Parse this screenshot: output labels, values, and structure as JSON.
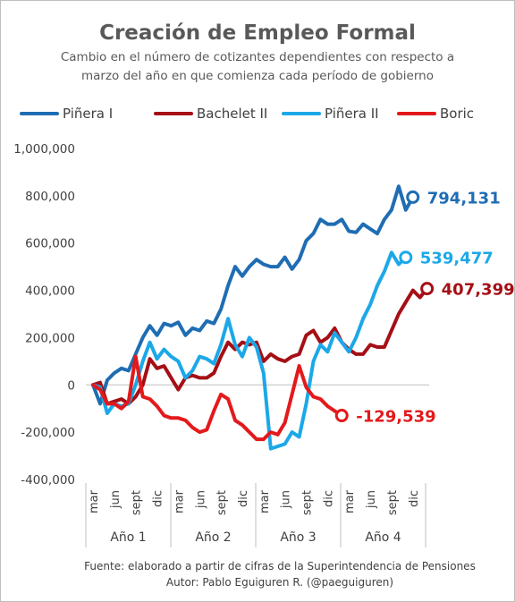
{
  "chart_data": {
    "type": "line",
    "title": "Creación de Empleo Formal",
    "subtitle": [
      "Cambio en el número de cotizantes dependientes con respecto a",
      "marzo del año en que comienza cada período de gobierno"
    ],
    "ylim": [
      -400000,
      1000000
    ],
    "yticks": [
      {
        "value": 1000000,
        "label": "1,000,000"
      },
      {
        "value": 800000,
        "label": "800,000"
      },
      {
        "value": 600000,
        "label": "600,000"
      },
      {
        "value": 400000,
        "label": "400,000"
      },
      {
        "value": 200000,
        "label": "200,000"
      },
      {
        "value": 0,
        "label": "0"
      },
      {
        "value": -200000,
        "label": "-200,000"
      },
      {
        "value": -400000,
        "label": "-400,000"
      }
    ],
    "grid": false,
    "legend": "top",
    "x_months": 48,
    "xticks": [
      {
        "index": 0,
        "label": "mar"
      },
      {
        "index": 3,
        "label": "jun"
      },
      {
        "index": 6,
        "label": "sept"
      },
      {
        "index": 9,
        "label": "dic"
      },
      {
        "index": 12,
        "label": "mar"
      },
      {
        "index": 15,
        "label": "jun"
      },
      {
        "index": 18,
        "label": "sept"
      },
      {
        "index": 21,
        "label": "dic"
      },
      {
        "index": 24,
        "label": "mar"
      },
      {
        "index": 27,
        "label": "jun"
      },
      {
        "index": 30,
        "label": "sept"
      },
      {
        "index": 33,
        "label": "dic"
      },
      {
        "index": 36,
        "label": "mar"
      },
      {
        "index": 39,
        "label": "jun"
      },
      {
        "index": 42,
        "label": "sept"
      },
      {
        "index": 45,
        "label": "dic"
      }
    ],
    "groups": [
      "Año 1",
      "Año 2",
      "Año 3",
      "Año 4"
    ],
    "series": [
      {
        "name": "Piñera I",
        "color": "#1f6db3",
        "end_label": "794,131",
        "values": [
          0,
          -80000,
          20000,
          50000,
          70000,
          60000,
          130000,
          200000,
          250000,
          210000,
          260000,
          250000,
          265000,
          210000,
          240000,
          230000,
          270000,
          260000,
          320000,
          420000,
          500000,
          460000,
          500000,
          530000,
          510000,
          500000,
          500000,
          540000,
          490000,
          530000,
          610000,
          640000,
          700000,
          680000,
          680000,
          700000,
          650000,
          645000,
          680000,
          660000,
          640000,
          700000,
          740000,
          840000,
          740000,
          794131
        ]
      },
      {
        "name": "Bachelet II",
        "color": "#a50f15",
        "end_label": "407,399",
        "values": [
          0,
          10000,
          -80000,
          -70000,
          -60000,
          -80000,
          -50000,
          0,
          110000,
          70000,
          80000,
          30000,
          -20000,
          30000,
          40000,
          30000,
          30000,
          50000,
          120000,
          180000,
          150000,
          180000,
          170000,
          180000,
          100000,
          130000,
          110000,
          100000,
          120000,
          130000,
          210000,
          230000,
          180000,
          200000,
          240000,
          180000,
          150000,
          130000,
          130000,
          170000,
          160000,
          160000,
          230000,
          300000,
          350000,
          400000,
          370000,
          407399
        ]
      },
      {
        "name": "Piñera II",
        "color": "#1ba8e8",
        "end_label": "539,477",
        "values": [
          0,
          -10000,
          -120000,
          -80000,
          -90000,
          -80000,
          0,
          100000,
          180000,
          110000,
          150000,
          120000,
          100000,
          30000,
          60000,
          120000,
          110000,
          90000,
          170000,
          280000,
          170000,
          120000,
          200000,
          160000,
          50000,
          -270000,
          -260000,
          -250000,
          -200000,
          -220000,
          -80000,
          100000,
          170000,
          140000,
          220000,
          180000,
          140000,
          200000,
          280000,
          340000,
          420000,
          480000,
          560000,
          510000,
          539477
        ]
      },
      {
        "name": "Boric",
        "color": "#e3191c",
        "end_label": "-129,539",
        "values": [
          0,
          -20000,
          -80000,
          -80000,
          -100000,
          -70000,
          120000,
          -50000,
          -60000,
          -90000,
          -130000,
          -140000,
          -140000,
          -150000,
          -180000,
          -200000,
          -190000,
          -110000,
          -40000,
          -60000,
          -150000,
          -170000,
          -200000,
          -230000,
          -230000,
          -200000,
          -210000,
          -160000,
          -40000,
          80000,
          -10000,
          -50000,
          -60000,
          -90000,
          -110000,
          -129539
        ]
      }
    ]
  },
  "footer": [
    "Fuente: elaborado a partir de cifras de la Superintendencia de Pensiones",
    "Autor: Pablo Eguiguren R. (@paeguiguren)"
  ]
}
